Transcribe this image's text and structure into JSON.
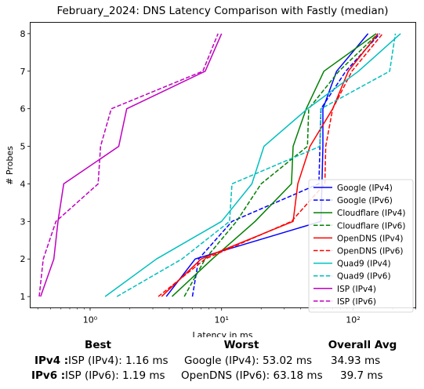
{
  "chart_data": {
    "type": "line",
    "title": "February_2024: DNS Latency Comparison with Fastly (median)",
    "xlabel": "Latency in ms",
    "ylabel": "# Probes",
    "x_scale": "log",
    "xlim": [
      0.35,
      300
    ],
    "ylim": [
      0.7,
      8.3
    ],
    "x_ticks": [
      {
        "value": 1,
        "label": "10⁰"
      },
      {
        "value": 10,
        "label": "10¹"
      },
      {
        "value": 100,
        "label": "10²"
      }
    ],
    "y_ticks": [
      1,
      2,
      3,
      4,
      5,
      6,
      7,
      8
    ],
    "grid": false,
    "legend_position": "lower-right",
    "series": [
      {
        "name": "Google (IPv4)",
        "color": "#0000ff",
        "dash": "solid",
        "x": [
          3.8,
          6.3,
          57,
          58,
          59,
          59,
          75,
          130
        ],
        "y": [
          1,
          2,
          3,
          4,
          5,
          6,
          7,
          8
        ]
      },
      {
        "name": "Google (IPv6)",
        "color": "#0000ff",
        "dash": "dashed",
        "x": [
          6.0,
          6.7,
          12,
          55,
          56,
          57,
          88,
          160
        ],
        "y": [
          1,
          2,
          3,
          4,
          5,
          6,
          7,
          8
        ]
      },
      {
        "name": "Cloudflare (IPv4)",
        "color": "#008000",
        "dash": "solid",
        "x": [
          4.2,
          8.5,
          18,
          34,
          35,
          44,
          60,
          150
        ],
        "y": [
          1,
          2,
          3,
          4,
          5,
          6,
          7,
          8
        ]
      },
      {
        "name": "Cloudflare (IPv6)",
        "color": "#008000",
        "dash": "dashed",
        "x": [
          5.2,
          7.5,
          13,
          20,
          45,
          46,
          78,
          155
        ],
        "y": [
          1,
          2,
          3,
          4,
          5,
          6,
          7,
          8
        ]
      },
      {
        "name": "OpenDNS (IPv4)",
        "color": "#ff0000",
        "dash": "solid",
        "x": [
          3.5,
          7.0,
          35,
          38,
          47,
          70,
          92,
          155
        ],
        "y": [
          1,
          2,
          3,
          4,
          5,
          6,
          7,
          8
        ]
      },
      {
        "name": "OpenDNS (IPv6)",
        "color": "#ff0000",
        "dash": "dashed",
        "x": [
          3.3,
          7.5,
          34,
          61,
          62,
          70,
          98,
          168
        ],
        "y": [
          1,
          2,
          3,
          4,
          5,
          6,
          7,
          8
        ]
      },
      {
        "name": "Quad9 (IPv4)",
        "color": "#00bfbf",
        "dash": "solid",
        "x": [
          1.3,
          3.2,
          10,
          17,
          21,
          45,
          110,
          230
        ],
        "y": [
          1,
          2,
          3,
          4,
          5,
          6,
          7,
          8
        ]
      },
      {
        "name": "Quad9 (IPv6)",
        "color": "#00bfbf",
        "dash": "dashed",
        "x": [
          1.6,
          5.0,
          11.5,
          12,
          56,
          57,
          190,
          210
        ],
        "y": [
          1,
          2,
          3,
          4,
          5,
          6,
          7,
          8
        ]
      },
      {
        "name": "ISP (IPv4)",
        "color": "#bf00bf",
        "dash": "solid",
        "x": [
          0.42,
          0.53,
          0.57,
          0.63,
          1.65,
          1.9,
          7.5,
          10
        ],
        "y": [
          1,
          2,
          3,
          4,
          5,
          6,
          7,
          8
        ]
      },
      {
        "name": "ISP (IPv6)",
        "color": "#bf00bf",
        "dash": "dashed",
        "x": [
          0.41,
          0.44,
          0.55,
          1.15,
          1.2,
          1.45,
          7.2,
          9.4
        ],
        "y": [
          1,
          2,
          3,
          4,
          5,
          6,
          7,
          8
        ]
      }
    ]
  },
  "summary": {
    "headers": {
      "best": "Best",
      "worst": "Worst",
      "avg": "Overall Avg"
    },
    "rows": [
      {
        "label": "IPv4 :",
        "best": "ISP (IPv4): 1.16 ms",
        "worst": "Google (IPv4): 53.02 ms",
        "avg": "34.93 ms"
      },
      {
        "label": "IPv6 :",
        "best": "ISP (IPv6): 1.19 ms",
        "worst": "OpenDNS (IPv6): 63.18 ms",
        "avg": "39.7 ms"
      }
    ]
  }
}
